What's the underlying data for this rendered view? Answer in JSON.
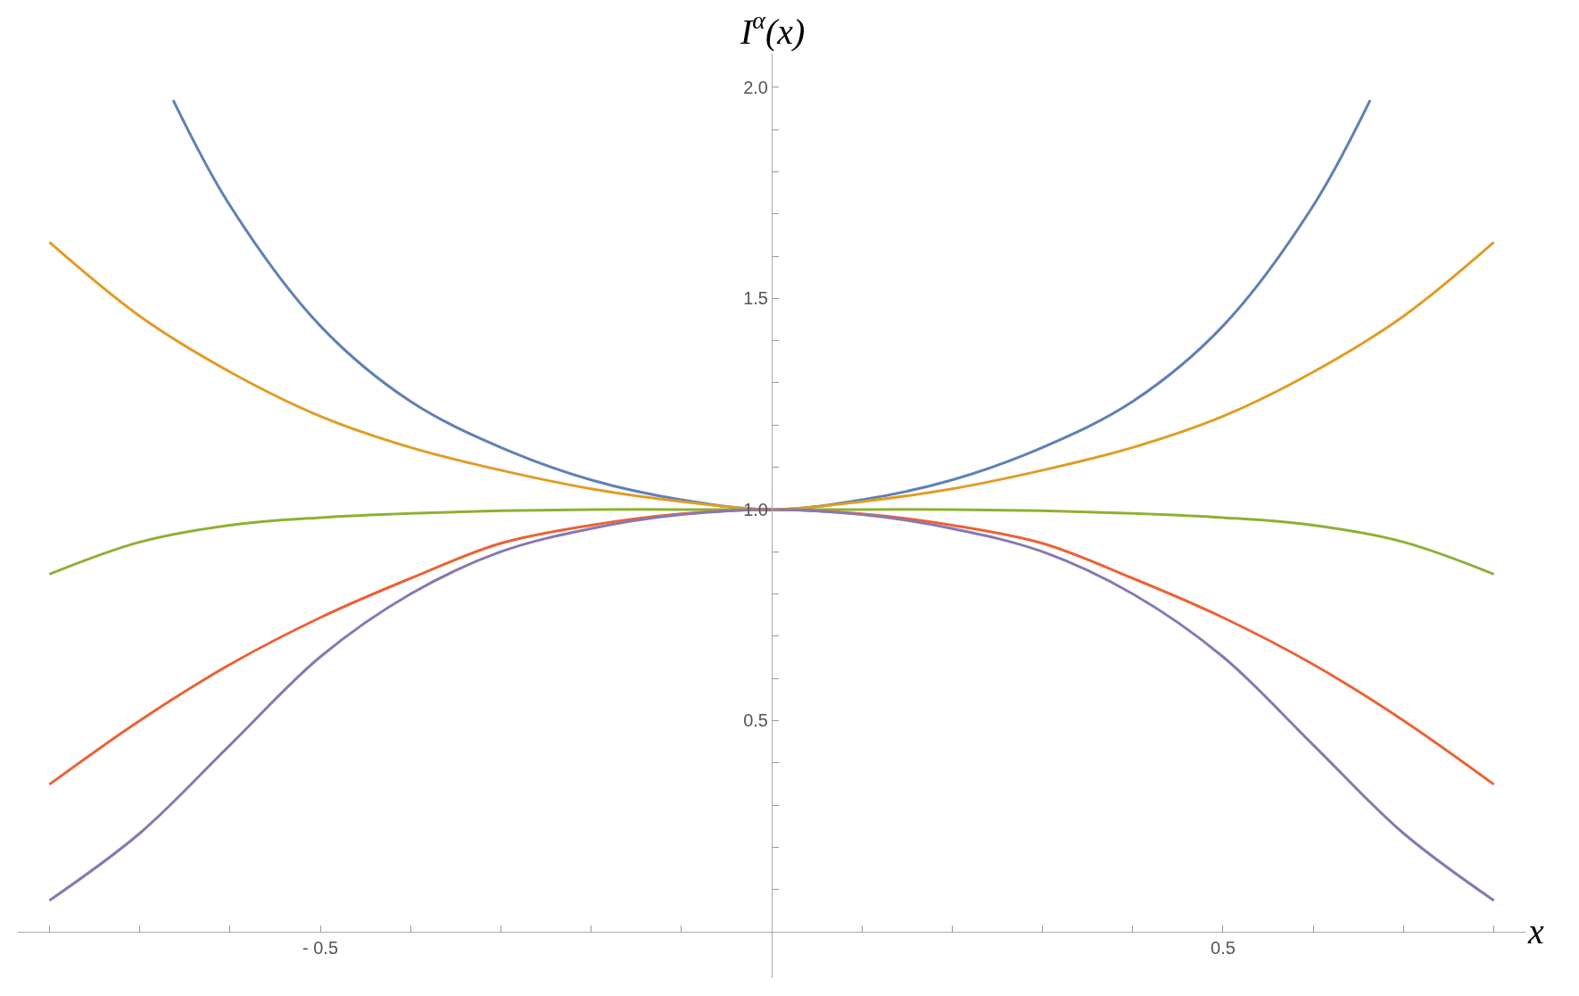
{
  "chart_data": {
    "type": "line",
    "xlabel": "x",
    "ylabel": "I$^{α}$(x)",
    "grid": false,
    "marker": "none",
    "line_style": "solid",
    "xlim": [
      -0.835,
      0.835
    ],
    "ylim": [
      -0.11,
      2.08
    ],
    "xticks": [
      {
        "value": -0.8,
        "label": null
      },
      {
        "value": -0.7,
        "label": null
      },
      {
        "value": -0.6,
        "label": null
      },
      {
        "value": -0.5,
        "label": "- 0.5"
      },
      {
        "value": -0.4,
        "label": null
      },
      {
        "value": -0.3,
        "label": null
      },
      {
        "value": -0.2,
        "label": null
      },
      {
        "value": -0.1,
        "label": null
      },
      {
        "value": 0.1,
        "label": null
      },
      {
        "value": 0.2,
        "label": null
      },
      {
        "value": 0.3,
        "label": null
      },
      {
        "value": 0.4,
        "label": null
      },
      {
        "value": 0.5,
        "label": "0.5"
      },
      {
        "value": 0.6,
        "label": null
      },
      {
        "value": 0.7,
        "label": null
      },
      {
        "value": 0.8,
        "label": null
      }
    ],
    "yticks": [
      {
        "value": 0.1,
        "label": null
      },
      {
        "value": 0.2,
        "label": null
      },
      {
        "value": 0.3,
        "label": null
      },
      {
        "value": 0.4,
        "label": null
      },
      0.5,
      {
        "value": 0.6,
        "label": null
      },
      {
        "value": 0.7,
        "label": null
      },
      {
        "value": 0.8,
        "label": null
      },
      {
        "value": 0.9,
        "label": null
      },
      {
        "value": 1,
        "label": "1.0"
      },
      {
        "value": 1.1,
        "label": null
      },
      {
        "value": 1.2,
        "label": null
      },
      {
        "value": 1.3,
        "label": null
      },
      {
        "value": 1.4,
        "label": null
      },
      1.5,
      {
        "value": 1.6,
        "label": null
      },
      {
        "value": 1.7,
        "label": null
      },
      {
        "value": 1.8,
        "label": null
      },
      {
        "value": 1.9,
        "label": null
      },
      {
        "value": 2,
        "label": "2.0"
      }
    ],
    "series": [
      {
        "color": "#5e81b5",
        "x": [
          -0.663,
          -0.6,
          -0.5,
          -0.4,
          -0.3,
          -0.2,
          -0.1,
          0,
          0.1,
          0.2,
          0.3,
          0.4,
          0.5,
          0.6,
          0.663
        ],
        "values": [
          1.97,
          1.72,
          1.435,
          1.256,
          1.147,
          1.07,
          1.023,
          1,
          1.023,
          1.07,
          1.147,
          1.256,
          1.435,
          1.72,
          1.97
        ]
      },
      {
        "color": "#e19c24",
        "x": [
          -0.8,
          -0.7,
          -0.6,
          -0.5,
          -0.4,
          -0.3,
          -0.2,
          -0.1,
          0,
          0.1,
          0.2,
          0.3,
          0.4,
          0.5,
          0.6,
          0.7,
          0.8
        ],
        "values": [
          1.633,
          1.458,
          1.326,
          1.221,
          1.147,
          1.093,
          1.049,
          1.019,
          1,
          1.019,
          1.049,
          1.093,
          1.147,
          1.221,
          1.326,
          1.458,
          1.633
        ]
      },
      {
        "color": "#8fb032",
        "x": [
          -0.8,
          -0.7,
          -0.6,
          -0.5,
          -0.4,
          -0.3,
          -0.2,
          -0.1,
          0,
          0.1,
          0.2,
          0.3,
          0.4,
          0.5,
          0.6,
          0.7,
          0.8
        ],
        "values": [
          0.847,
          0.923,
          0.963,
          0.981,
          0.991,
          0.997,
          1,
          1,
          1,
          1,
          1,
          0.997,
          0.991,
          0.981,
          0.963,
          0.923,
          0.847
        ]
      },
      {
        "color": "#eb6235",
        "x": [
          -0.8,
          -0.7,
          -0.6,
          -0.5,
          -0.4,
          -0.3,
          -0.2,
          -0.1,
          0,
          0.1,
          0.2,
          0.3,
          0.4,
          0.5,
          0.6,
          0.7,
          0.8
        ],
        "values": [
          0.349,
          0.5,
          0.633,
          0.744,
          0.837,
          0.92,
          0.963,
          0.99,
          1,
          0.99,
          0.963,
          0.92,
          0.837,
          0.744,
          0.633,
          0.5,
          0.349
        ]
      },
      {
        "color": "#8778b3",
        "x": [
          -0.8,
          -0.7,
          -0.6,
          -0.5,
          -0.4,
          -0.3,
          -0.2,
          -0.1,
          0,
          0.1,
          0.2,
          0.3,
          0.4,
          0.5,
          0.6,
          0.7,
          0.8
        ],
        "values": [
          0.074,
          0.233,
          0.442,
          0.651,
          0.8,
          0.9,
          0.955,
          0.988,
          1,
          0.988,
          0.955,
          0.9,
          0.8,
          0.651,
          0.442,
          0.233,
          0.074
        ]
      }
    ]
  }
}
